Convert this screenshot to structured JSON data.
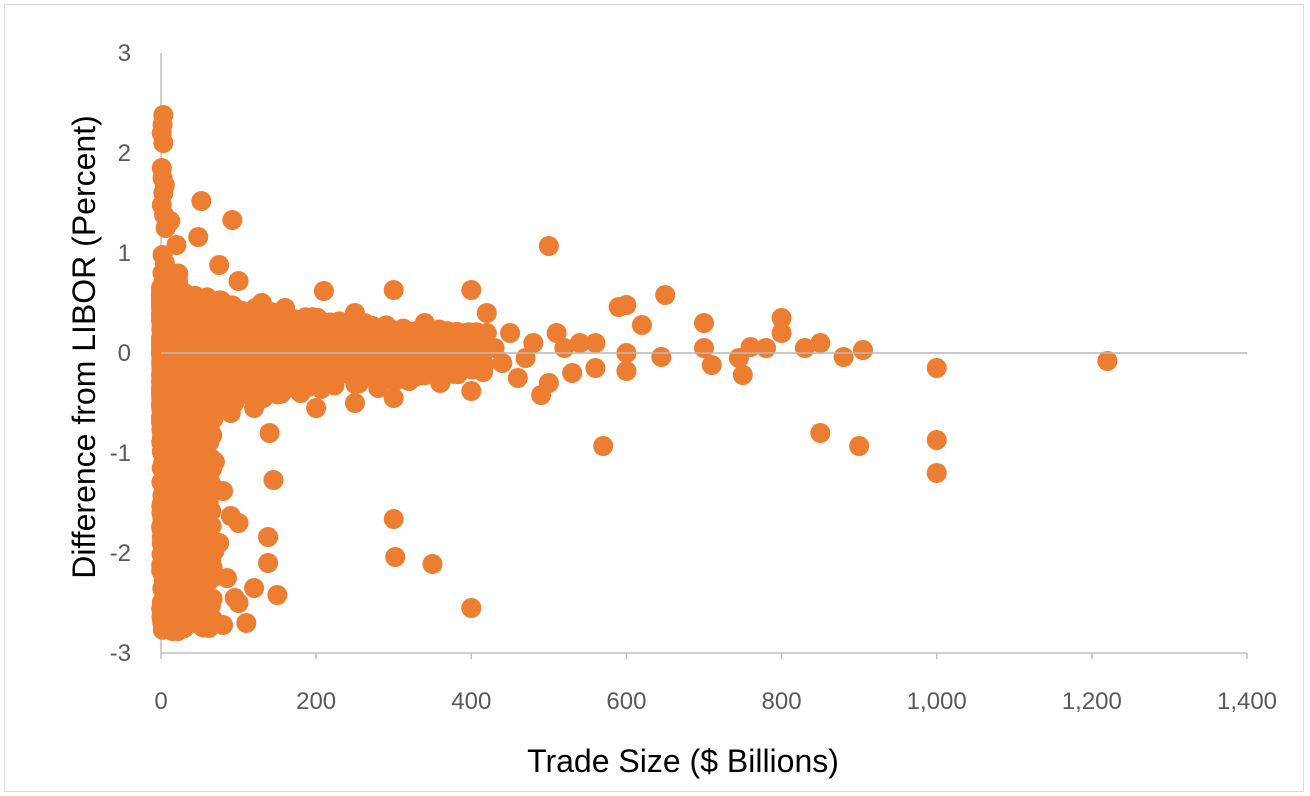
{
  "chart_data": {
    "type": "scatter",
    "title": "",
    "xlabel": "Trade Size ($ Billions)",
    "ylabel": "Difference from LIBOR (Percent)",
    "xlim": [
      0,
      1400
    ],
    "ylim": [
      -3,
      3
    ],
    "x_ticks": [
      0,
      200,
      400,
      600,
      800,
      1000,
      1200,
      1400
    ],
    "x_tick_labels": [
      "0",
      "200",
      "400",
      "600",
      "800",
      "1,000",
      "1,200",
      "1,400"
    ],
    "y_ticks": [
      -3,
      -2,
      -1,
      0,
      1,
      2,
      3
    ],
    "y_tick_labels": [
      "-3",
      "-2",
      "-1",
      "0",
      "1",
      "2",
      "3"
    ],
    "grid": false,
    "legend": "none",
    "marker_color": "#ED7D31",
    "series": [
      {
        "points": [
          [
            3,
            2.38
          ],
          [
            2,
            2.28
          ],
          [
            1,
            2.2
          ],
          [
            3,
            2.1
          ],
          [
            1,
            1.85
          ],
          [
            2,
            1.75
          ],
          [
            5,
            1.68
          ],
          [
            3,
            1.6
          ],
          [
            1,
            1.48
          ],
          [
            4,
            1.38
          ],
          [
            12,
            1.32
          ],
          [
            6,
            1.25
          ],
          [
            20,
            1.08
          ],
          [
            2,
            0.98
          ],
          [
            5,
            0.9
          ],
          [
            8,
            0.82
          ],
          [
            52,
            1.52
          ],
          [
            92,
            1.33
          ],
          [
            48,
            1.16
          ],
          [
            75,
            0.88
          ],
          [
            100,
            0.72
          ],
          [
            210,
            0.62
          ],
          [
            300,
            0.63
          ],
          [
            400,
            0.63
          ],
          [
            500,
            1.07
          ],
          [
            650,
            0.58
          ],
          [
            600,
            0.48
          ],
          [
            590,
            0.46
          ],
          [
            620,
            0.28
          ],
          [
            700,
            0.3
          ],
          [
            800,
            0.35
          ],
          [
            850,
            0.1
          ],
          [
            905,
            0.03
          ],
          [
            880,
            -0.04
          ],
          [
            760,
            0.06
          ],
          [
            745,
            -0.05
          ],
          [
            750,
            -0.22
          ],
          [
            710,
            -0.12
          ],
          [
            645,
            -0.04
          ],
          [
            600,
            -0.18
          ],
          [
            1220,
            -0.08
          ],
          [
            1000,
            -0.15
          ],
          [
            1000,
            -0.87
          ],
          [
            1000,
            -1.2
          ],
          [
            900,
            -0.93
          ],
          [
            850,
            -0.8
          ],
          [
            570,
            -0.93
          ],
          [
            145,
            -1.27
          ],
          [
            140,
            -0.8
          ],
          [
            300,
            -1.66
          ],
          [
            302,
            -2.04
          ],
          [
            350,
            -2.11
          ],
          [
            400,
            -2.55
          ],
          [
            110,
            -2.7
          ],
          [
            150,
            -2.42
          ],
          [
            138,
            -2.1
          ],
          [
            138,
            -1.84
          ],
          [
            100,
            -1.7
          ],
          [
            90,
            -1.63
          ],
          [
            80,
            -1.38
          ],
          [
            75,
            -1.9
          ],
          [
            60,
            -2.3
          ],
          [
            50,
            -2.6
          ],
          [
            30,
            -2.75
          ],
          [
            15,
            -2.78
          ],
          [
            5,
            -2.72
          ],
          [
            10,
            -2.55
          ],
          [
            20,
            -2.4
          ],
          [
            25,
            -2.2
          ],
          [
            8,
            -2.0
          ],
          [
            15,
            -1.8
          ],
          [
            10,
            -1.6
          ],
          [
            30,
            -1.4
          ],
          [
            5,
            -1.2
          ],
          [
            20,
            -1.1
          ],
          [
            45,
            -1.0
          ],
          [
            60,
            -0.85
          ],
          [
            12,
            -0.95
          ],
          [
            3,
            -0.7
          ],
          [
            90,
            -0.6
          ],
          [
            120,
            -0.55
          ],
          [
            200,
            -0.55
          ],
          [
            250,
            -0.5
          ],
          [
            300,
            -0.45
          ],
          [
            400,
            -0.38
          ],
          [
            490,
            -0.42
          ],
          [
            500,
            -0.3
          ],
          [
            460,
            -0.25
          ],
          [
            530,
            -0.2
          ],
          [
            560,
            -0.15
          ],
          [
            440,
            -0.1
          ],
          [
            360,
            -0.3
          ],
          [
            320,
            -0.28
          ],
          [
            280,
            -0.35
          ],
          [
            180,
            -0.4
          ],
          [
            150,
            -0.3
          ],
          [
            100,
            -0.25
          ],
          [
            50,
            -0.2
          ],
          [
            30,
            -0.1
          ],
          [
            70,
            0.3
          ],
          [
            130,
            0.5
          ],
          [
            160,
            0.45
          ],
          [
            250,
            0.4
          ],
          [
            340,
            0.3
          ],
          [
            380,
            0.2
          ],
          [
            420,
            0.4
          ],
          [
            450,
            0.2
          ],
          [
            480,
            0.1
          ],
          [
            520,
            0.05
          ],
          [
            540,
            0.1
          ],
          [
            560,
            0.1
          ],
          [
            30,
            0.6
          ],
          [
            10,
            0.7
          ],
          [
            5,
            0.5
          ],
          [
            20,
            0.3
          ],
          [
            40,
            0.45
          ],
          [
            60,
            0.2
          ],
          [
            90,
            0.1
          ],
          [
            110,
            0.0
          ],
          [
            140,
            -0.1
          ],
          [
            170,
            0.1
          ],
          [
            220,
            0.0
          ],
          [
            260,
            0.05
          ],
          [
            290,
            0.1
          ],
          [
            320,
            0.15
          ],
          [
            350,
            0.05
          ],
          [
            410,
            0.0
          ],
          [
            470,
            -0.05
          ],
          [
            510,
            0.2
          ],
          [
            600,
            0.0
          ],
          [
            700,
            0.05
          ],
          [
            780,
            0.05
          ],
          [
            800,
            0.2
          ],
          [
            830,
            0.05
          ],
          [
            10,
            -0.3
          ],
          [
            25,
            -0.5
          ],
          [
            40,
            -0.7
          ],
          [
            70,
            -0.45
          ],
          [
            35,
            -1.55
          ],
          [
            55,
            -1.75
          ],
          [
            65,
            -2.05
          ],
          [
            85,
            -2.25
          ],
          [
            95,
            -2.45
          ],
          [
            120,
            -2.35
          ],
          [
            45,
            -2.7
          ],
          [
            65,
            -2.65
          ],
          [
            80,
            -2.72
          ],
          [
            100,
            -2.5
          ],
          [
            22,
            -2.62
          ],
          [
            40,
            -1.25
          ],
          [
            18,
            -0.55
          ],
          [
            8,
            0.15
          ],
          [
            4,
            -0.1
          ],
          [
            2,
            0.4
          ],
          [
            15,
            -0.15
          ],
          [
            35,
            0.05
          ],
          [
            55,
            -0.05
          ],
          [
            80,
            0.15
          ],
          [
            95,
            -0.35
          ],
          [
            125,
            0.25
          ],
          [
            165,
            -0.15
          ],
          [
            190,
            0.3
          ],
          [
            230,
            0.2
          ],
          [
            270,
            -0.2
          ],
          [
            310,
            0.0
          ],
          [
            330,
            -0.1
          ],
          [
            370,
            0.1
          ],
          [
            430,
            0.05
          ]
        ]
      }
    ]
  }
}
